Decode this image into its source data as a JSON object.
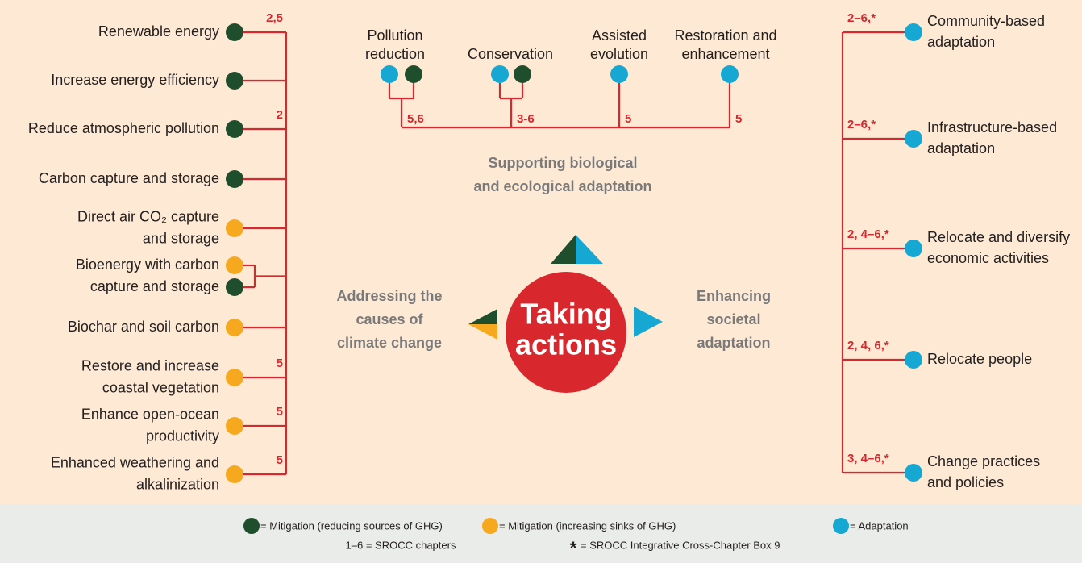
{
  "left_actions": {
    "items": [
      {
        "lines": [
          "Renewable energy"
        ],
        "colors": [
          "#1f4e2c"
        ],
        "chapters": "2,5"
      },
      {
        "lines": [
          "Increase energy efficiency"
        ],
        "colors": [
          "#1f4e2c"
        ]
      },
      {
        "lines": [
          "Reduce atmospheric pollution"
        ],
        "colors": [
          "#1f4e2c"
        ],
        "chapters": "2"
      },
      {
        "lines": [
          "Carbon capture and storage"
        ],
        "colors": [
          "#1f4e2c"
        ]
      },
      {
        "lines": [
          "Direct air CO₂ capture",
          "and storage"
        ],
        "colors": [
          "#f6a91f"
        ]
      },
      {
        "lines": [
          "Bioenergy with carbon",
          "capture and storage"
        ],
        "colors": [
          "#f6a91f",
          "#1f4e2c"
        ]
      },
      {
        "lines": [
          "Biochar and soil carbon"
        ],
        "colors": [
          "#f6a91f"
        ]
      },
      {
        "lines": [
          "Restore and increase",
          "coastal vegetation"
        ],
        "colors": [
          "#f6a91f"
        ],
        "chapters": "5"
      },
      {
        "lines": [
          "Enhance open-ocean",
          "productivity"
        ],
        "colors": [
          "#f6a91f"
        ],
        "chapters": "5"
      },
      {
        "lines": [
          "Enhanced weathering and",
          "alkalinization"
        ],
        "colors": [
          "#f6a91f"
        ],
        "chapters": "5"
      }
    ]
  },
  "top_actions": {
    "items": [
      {
        "lines": [
          "Pollution",
          "reduction"
        ],
        "colors": [
          "#16a7d3",
          "#1f4e2c"
        ],
        "chapters": "5,6"
      },
      {
        "lines": [
          "Conservation"
        ],
        "colors": [
          "#16a7d3",
          "#1f4e2c"
        ],
        "chapters": "3-6"
      },
      {
        "lines": [
          "Assisted",
          "evolution"
        ],
        "colors": [
          "#16a7d3"
        ],
        "chapters": "5"
      },
      {
        "lines": [
          "Restoration and",
          "enhancement"
        ],
        "colors": [
          "#16a7d3"
        ],
        "chapters": "5"
      }
    ],
    "caption": [
      "Supporting biological",
      "and ecological adaptation"
    ]
  },
  "center": {
    "title": [
      "Taking",
      "actions"
    ],
    "left_caption": [
      "Addressing the",
      "causes of",
      "climate change"
    ],
    "right_caption": [
      "Enhancing",
      "societal",
      "adaptation"
    ]
  },
  "right_actions": {
    "items": [
      {
        "lines": [
          "Community-based",
          "adaptation"
        ],
        "color": "#16a7d3",
        "chapters": "2–6,*"
      },
      {
        "lines": [
          "Infrastructure-based",
          "adaptation"
        ],
        "color": "#16a7d3",
        "chapters": "2–6,*"
      },
      {
        "lines": [
          "Relocate and diversify",
          "economic activities"
        ],
        "color": "#16a7d3",
        "chapters": "2, 4–6,*"
      },
      {
        "lines": [
          "Relocate people"
        ],
        "color": "#16a7d3",
        "chapters": "2, 4, 6,*"
      },
      {
        "lines": [
          "Change practices",
          "and policies"
        ],
        "color": "#16a7d3",
        "chapters": "3, 4–6,*"
      }
    ]
  },
  "legend": {
    "entries": [
      {
        "color": "#1f4e2c",
        "label": "= Mitigation (reducing sources of GHG)"
      },
      {
        "color": "#f6a91f",
        "label": "= Mitigation (increasing sinks of GHG)"
      },
      {
        "color": "#16a7d3",
        "label": "= Adaptation"
      }
    ],
    "chapters_note": "1–6 = SROCC chapters",
    "box_symbol": "*",
    "box_note": "= SROCC Integrative Cross-Chapter Box 9"
  }
}
